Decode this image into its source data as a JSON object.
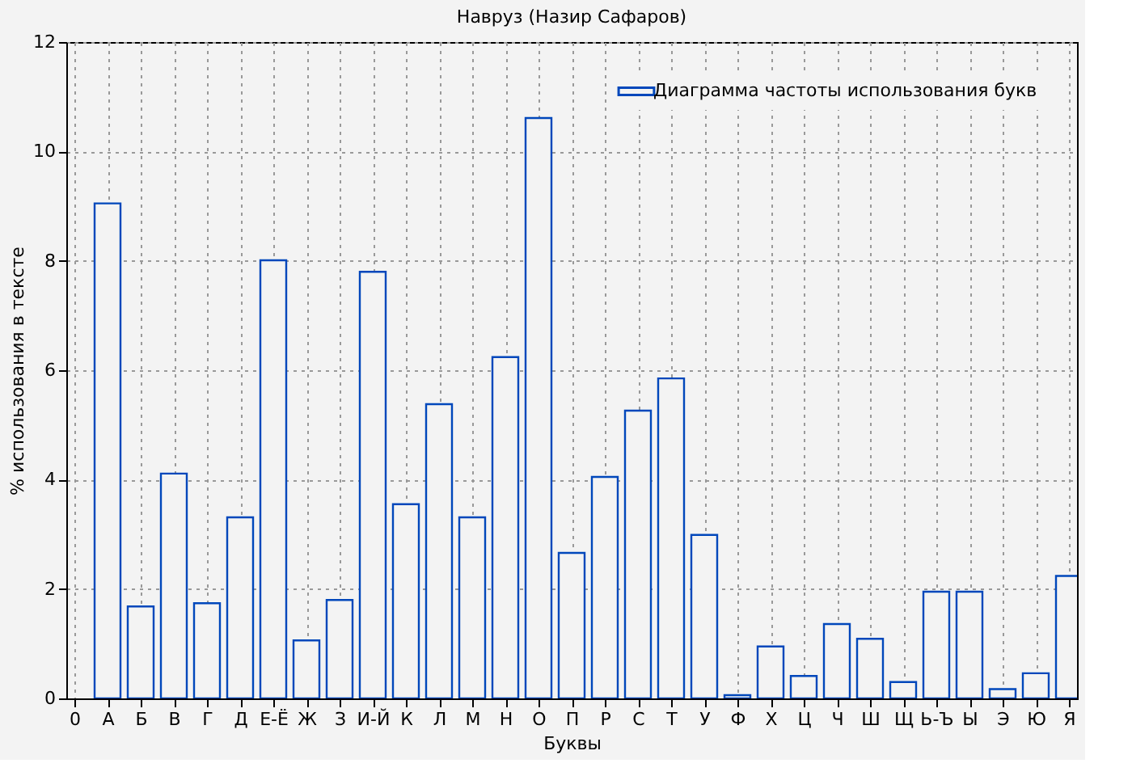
{
  "chart_data": {
    "type": "bar",
    "title": "Навруз (Назир Сафаров)",
    "xlabel": "Буквы",
    "ylabel": "% использования в тексте",
    "categories": [
      "0",
      "А",
      "Б",
      "В",
      "Г",
      "Д",
      "Е-Ё",
      "Ж",
      "З",
      "И-Й",
      "К",
      "Л",
      "М",
      "Н",
      "О",
      "П",
      "Р",
      "С",
      "Т",
      "У",
      "Ф",
      "Х",
      "Ц",
      "Ч",
      "Ш",
      "Щ",
      "Ь-Ъ",
      "Ы",
      "Э",
      "Ю",
      "Я"
    ],
    "series": [
      {
        "name": "Диаграмма частоты использования букв",
        "color": "#0047bb",
        "values": [
          null,
          9.05,
          1.68,
          4.11,
          1.74,
          3.31,
          8.01,
          1.06,
          1.8,
          7.8,
          3.55,
          5.38,
          3.31,
          6.24,
          10.61,
          2.66,
          4.05,
          5.26,
          5.85,
          2.99,
          0.06,
          0.95,
          0.41,
          1.36,
          1.09,
          0.3,
          1.95,
          1.95,
          0.17,
          0.46,
          2.24
        ]
      }
    ],
    "ylim": [
      0,
      12
    ],
    "yticks": [
      0,
      2,
      4,
      6,
      8,
      10,
      12
    ],
    "grid": true,
    "legend": "top right"
  }
}
